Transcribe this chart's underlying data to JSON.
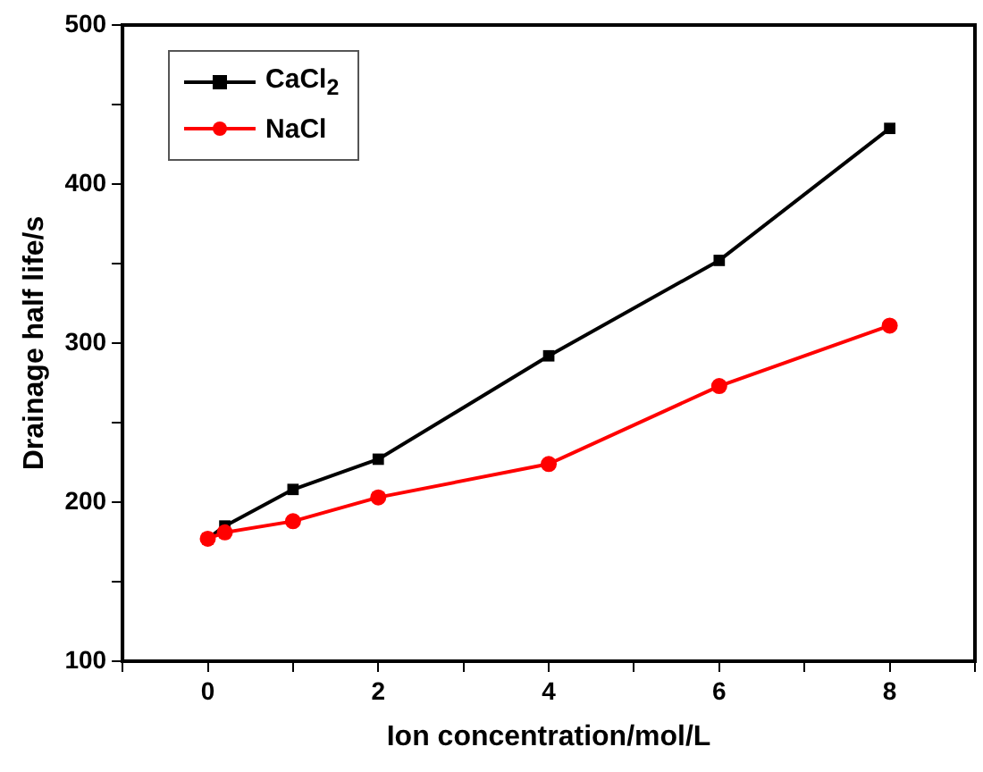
{
  "chart_data": {
    "type": "line",
    "xlabel": "Ion concentration/mol/L",
    "ylabel": "Drainage half life/s",
    "x": [
      0,
      0.2,
      1,
      2,
      4,
      6,
      8
    ],
    "series": [
      {
        "name": "CaCl$_{2}$",
        "color": "#000000",
        "marker": "square",
        "values": [
          177,
          185,
          208,
          227,
          292,
          352,
          435
        ]
      },
      {
        "name": "NaCl",
        "color": "#ff0000",
        "marker": "circle",
        "values": [
          177,
          181,
          188,
          203,
          224,
          273,
          311
        ]
      }
    ],
    "xlim": [
      -1,
      9
    ],
    "xticks": [
      {
        "value": -1,
        "label": null
      },
      0,
      {
        "value": 1,
        "label": null
      },
      2,
      {
        "value": 3,
        "label": null
      },
      4,
      {
        "value": 5,
        "label": null
      },
      6,
      {
        "value": 7,
        "label": null
      },
      8,
      {
        "value": 9,
        "label": null
      }
    ],
    "ylim": [
      100,
      500
    ],
    "yticks": [
      100,
      {
        "value": 150,
        "label": null
      },
      200,
      {
        "value": 250,
        "label": null
      },
      300,
      {
        "value": 350,
        "label": null
      },
      400,
      {
        "value": 450,
        "label": null
      },
      500
    ],
    "grid": false,
    "legend": "top left",
    "line_style": "solid"
  }
}
